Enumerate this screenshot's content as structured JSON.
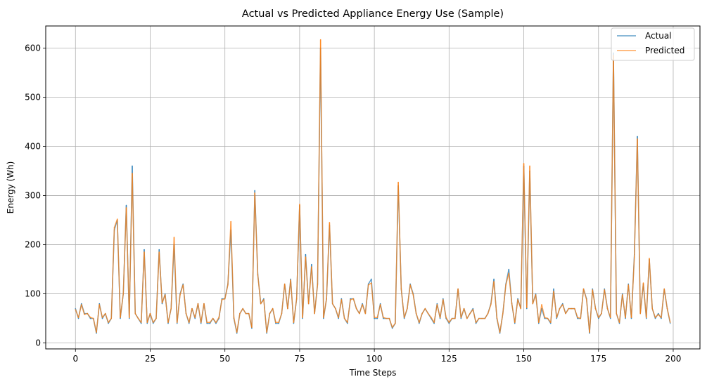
{
  "chart_data": {
    "type": "line",
    "title": "Actual vs Predicted Appliance Energy Use (Sample)",
    "xlabel": "Time Steps",
    "ylabel": "Energy (Wh)",
    "xlim": [
      -9.95,
      208.95
    ],
    "ylim": [
      -12,
      645
    ],
    "xticks": [
      0,
      25,
      50,
      75,
      100,
      125,
      150,
      175,
      200
    ],
    "yticks": [
      0,
      100,
      200,
      300,
      400,
      500,
      600
    ],
    "grid": true,
    "legend_position": "top-right",
    "series": [
      {
        "name": "Actual",
        "color": "#1f77b4",
        "values": [
          70,
          50,
          80,
          60,
          60,
          50,
          50,
          20,
          80,
          50,
          60,
          40,
          50,
          230,
          250,
          50,
          100,
          280,
          50,
          360,
          60,
          50,
          40,
          190,
          40,
          60,
          40,
          50,
          190,
          80,
          100,
          40,
          70,
          200,
          40,
          100,
          120,
          60,
          40,
          70,
          50,
          80,
          40,
          80,
          40,
          40,
          50,
          40,
          50,
          90,
          90,
          120,
          230,
          50,
          20,
          60,
          70,
          60,
          60,
          30,
          310,
          140,
          80,
          90,
          20,
          60,
          70,
          40,
          40,
          60,
          120,
          70,
          130,
          40,
          90,
          280,
          50,
          180,
          80,
          160,
          60,
          120,
          600,
          50,
          90,
          240,
          80,
          70,
          50,
          90,
          50,
          40,
          90,
          90,
          70,
          60,
          80,
          60,
          120,
          130,
          50,
          50,
          80,
          50,
          50,
          50,
          30,
          40,
          320,
          110,
          50,
          70,
          120,
          100,
          60,
          40,
          60,
          70,
          60,
          50,
          40,
          80,
          50,
          90,
          50,
          40,
          50,
          50,
          110,
          50,
          70,
          50,
          60,
          70,
          40,
          50,
          50,
          50,
          60,
          80,
          130,
          50,
          20,
          60,
          120,
          150,
          80,
          40,
          90,
          70,
          360,
          70,
          350,
          80,
          100,
          40,
          70,
          50,
          50,
          40,
          110,
          50,
          70,
          80,
          60,
          70,
          70,
          70,
          50,
          50,
          110,
          90,
          20,
          110,
          70,
          50,
          60,
          110,
          70,
          50,
          590,
          60,
          40,
          100,
          50,
          120,
          50,
          180,
          420,
          60,
          120,
          50,
          170,
          70,
          50,
          60,
          50,
          110,
          70,
          40
        ]
      },
      {
        "name": "Predicted",
        "color": "#ff7f0e",
        "values": [
          68,
          52,
          78,
          58,
          60,
          52,
          50,
          22,
          78,
          52,
          60,
          42,
          50,
          235,
          252,
          52,
          100,
          275,
          52,
          345,
          60,
          50,
          42,
          185,
          42,
          60,
          42,
          50,
          185,
          82,
          98,
          42,
          70,
          215,
          42,
          98,
          118,
          60,
          42,
          70,
          52,
          80,
          42,
          80,
          42,
          42,
          50,
          42,
          52,
          88,
          90,
          118,
          247,
          52,
          22,
          60,
          70,
          60,
          60,
          32,
          305,
          138,
          80,
          88,
          22,
          60,
          70,
          42,
          42,
          60,
          120,
          70,
          128,
          42,
          90,
          282,
          52,
          175,
          80,
          155,
          60,
          118,
          617,
          52,
          90,
          245,
          80,
          70,
          52,
          88,
          50,
          42,
          88,
          90,
          70,
          60,
          78,
          60,
          118,
          122,
          52,
          52,
          78,
          52,
          50,
          50,
          32,
          40,
          327,
          110,
          52,
          70,
          118,
          98,
          60,
          42,
          60,
          70,
          60,
          52,
          42,
          78,
          52,
          88,
          52,
          42,
          50,
          50,
          110,
          52,
          70,
          50,
          60,
          68,
          42,
          50,
          50,
          50,
          60,
          78,
          125,
          52,
          22,
          60,
          118,
          142,
          80,
          42,
          88,
          70,
          365,
          72,
          360,
          80,
          98,
          42,
          78,
          52,
          50,
          42,
          105,
          52,
          70,
          78,
          60,
          70,
          70,
          70,
          52,
          50,
          110,
          88,
          22,
          108,
          70,
          52,
          60,
          108,
          70,
          52,
          585,
          60,
          42,
          98,
          52,
          118,
          52,
          175,
          415,
          60,
          122,
          52,
          172,
          70,
          52,
          58,
          52,
          110,
          70,
          42
        ]
      }
    ]
  }
}
